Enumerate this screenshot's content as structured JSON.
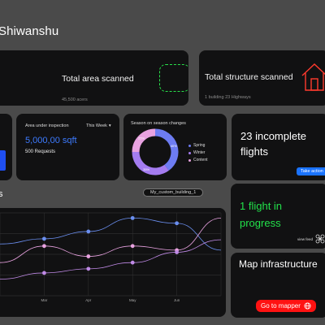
{
  "greeting": "Shiwanshu",
  "area_card": {
    "title": "Total area scanned",
    "subtitle": "45,500 acers"
  },
  "structure_card": {
    "title": "Total structure scanned",
    "subtitle": "1 building  23 Highways"
  },
  "inspection_card": {
    "label": "Area under inspection",
    "period": "This Week",
    "value": "5,000,00 sqft",
    "requests": "500 Requests",
    "accent": "#3d7bff"
  },
  "season_card": {
    "title": "Season on season changes",
    "legend": [
      {
        "name": "Spring",
        "color": "#6d7cf2"
      },
      {
        "name": "Winter",
        "color": "#a47cf0"
      },
      {
        "name": "Content",
        "color": "#e8a2e0"
      }
    ],
    "slices": [
      {
        "label": "40%",
        "value": 40,
        "color": "#6d7cf2"
      },
      {
        "label": "35%",
        "value": 35,
        "color": "#a47cf0"
      },
      {
        "label": "25%",
        "value": 25,
        "color": "#e8a2e0"
      }
    ]
  },
  "incomplete_card": {
    "title": "23 incomplete flights",
    "button": "Take action"
  },
  "progress_card": {
    "title": "1 flight in progress",
    "link": "view feed",
    "accent": "#22e04a"
  },
  "map_card": {
    "title": "Map infrastructure",
    "button": "Go to mapper"
  },
  "chart_section": {
    "title_fragment": "s",
    "building_pill": "My_custom_building_1"
  },
  "chart_data": {
    "type": "line",
    "categories": [
      "",
      "Mar",
      "Apr",
      "May",
      "Jun",
      ""
    ],
    "series": [
      {
        "values": [
          30,
          35,
          42,
          55,
          50,
          24
        ],
        "color": "#6b8ff0"
      },
      {
        "values": [
          12,
          28,
          18,
          28,
          24,
          55
        ],
        "color": "#e8a2e0"
      },
      {
        "values": [
          -4,
          2,
          6,
          12,
          22,
          34
        ],
        "color": "#c08ae6"
      }
    ],
    "ylim": [
      -20,
      60
    ],
    "grid": true
  }
}
